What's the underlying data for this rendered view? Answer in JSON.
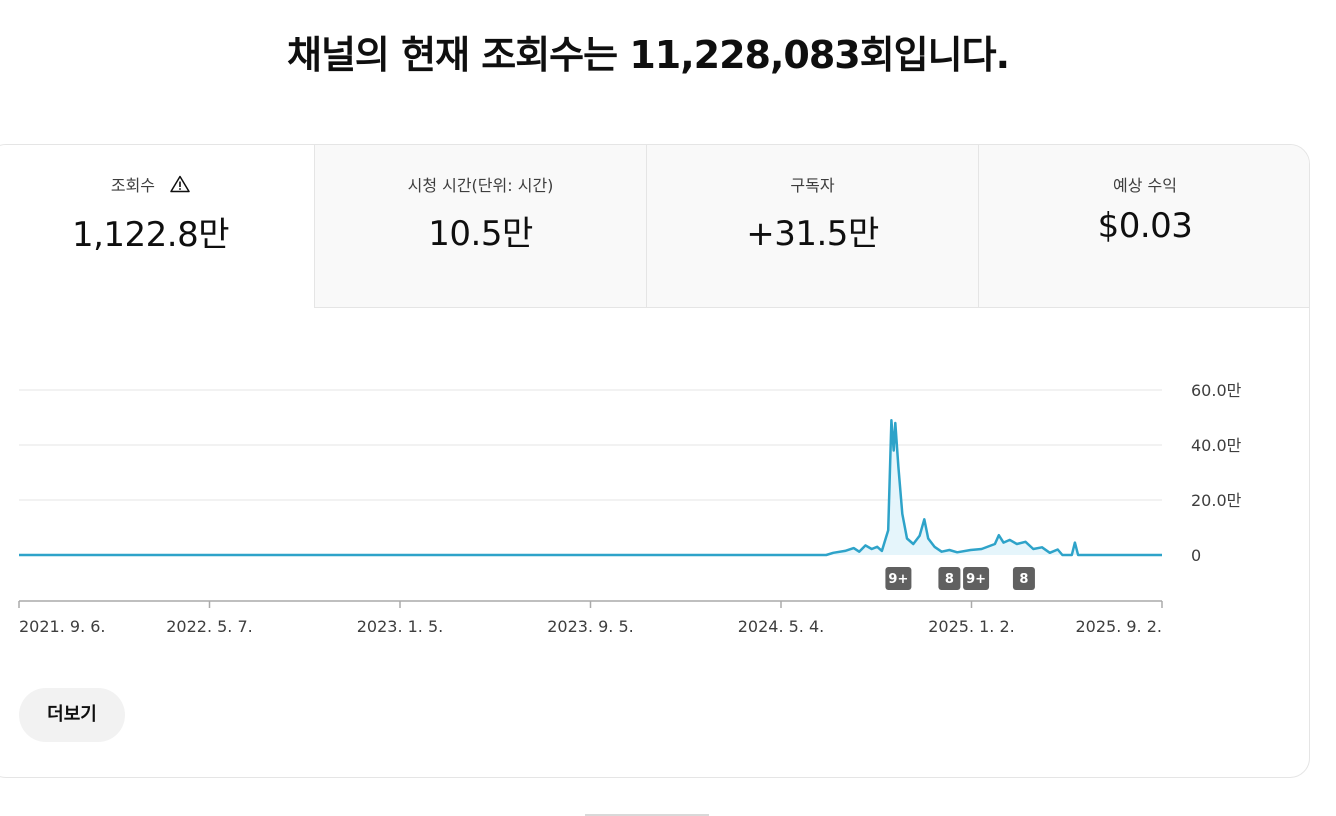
{
  "headline": "채널의 현재 조회수는 11,228,083회입니다.",
  "tabs": [
    {
      "label": "조회수",
      "value": "1,122.8만",
      "icon": "warning-icon",
      "active": true
    },
    {
      "label": "시청 시간(단위: 시간)",
      "value": "10.5만",
      "active": false
    },
    {
      "label": "구독자",
      "value": "+31.5만",
      "active": false
    },
    {
      "label": "예상 수익",
      "value": "$0.03",
      "active": false
    }
  ],
  "more_button": "더보기",
  "colors": {
    "line": "#2ea3c9",
    "area": "#e5f5fb",
    "grid": "#e5e5e5",
    "axis": "#aaaaaa",
    "marker": "#606060"
  },
  "chart_data": {
    "type": "line",
    "x_ticks": [
      "2021. 9. 6.",
      "2022. 5. 7.",
      "2023. 1. 5.",
      "2023. 9. 5.",
      "2024. 5. 4.",
      "2025. 1. 2.",
      "2025. 9. 2."
    ],
    "y_ticks": [
      "60.0만",
      "40.0만",
      "20.0만",
      "0"
    ],
    "ylim": [
      0,
      600000
    ],
    "x_range": [
      "2021-09-06",
      "2025-09-02"
    ],
    "series": [
      {
        "points": [
          [
            "2021-09-06",
            0
          ],
          [
            "2024-07-01",
            0
          ],
          [
            "2024-07-10",
            8000
          ],
          [
            "2024-07-25",
            15000
          ],
          [
            "2024-08-05",
            25000
          ],
          [
            "2024-08-12",
            12000
          ],
          [
            "2024-08-20",
            35000
          ],
          [
            "2024-08-28",
            22000
          ],
          [
            "2024-09-04",
            30000
          ],
          [
            "2024-09-10",
            15000
          ],
          [
            "2024-09-18",
            90000
          ],
          [
            "2024-09-22",
            490000
          ],
          [
            "2024-09-25",
            380000
          ],
          [
            "2024-09-27",
            480000
          ],
          [
            "2024-10-01",
            320000
          ],
          [
            "2024-10-06",
            150000
          ],
          [
            "2024-10-12",
            60000
          ],
          [
            "2024-10-20",
            40000
          ],
          [
            "2024-10-28",
            70000
          ],
          [
            "2024-11-03",
            130000
          ],
          [
            "2024-11-08",
            60000
          ],
          [
            "2024-11-16",
            30000
          ],
          [
            "2024-11-25",
            12000
          ],
          [
            "2024-12-05",
            18000
          ],
          [
            "2024-12-15",
            10000
          ],
          [
            "2025-01-01",
            18000
          ],
          [
            "2025-01-15",
            22000
          ],
          [
            "2025-02-01",
            40000
          ],
          [
            "2025-02-06",
            72000
          ],
          [
            "2025-02-12",
            45000
          ],
          [
            "2025-02-20",
            55000
          ],
          [
            "2025-03-01",
            40000
          ],
          [
            "2025-03-12",
            48000
          ],
          [
            "2025-03-22",
            22000
          ],
          [
            "2025-04-02",
            28000
          ],
          [
            "2025-04-12",
            8000
          ],
          [
            "2025-04-22",
            20000
          ],
          [
            "2025-04-28",
            0
          ],
          [
            "2025-05-10",
            0
          ],
          [
            "2025-05-14",
            45000
          ],
          [
            "2025-05-18",
            0
          ],
          [
            "2025-09-02",
            0
          ]
        ]
      }
    ],
    "markers": [
      {
        "date": "2024-10-01",
        "label": "9+"
      },
      {
        "date": "2024-12-05",
        "label": "8"
      },
      {
        "date": "2025-01-08",
        "label": "9+"
      },
      {
        "date": "2025-03-10",
        "label": "8"
      }
    ]
  }
}
